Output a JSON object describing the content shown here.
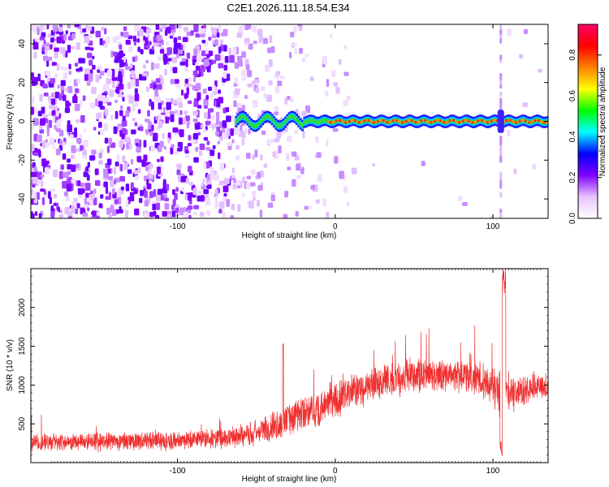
{
  "title": "C2E1.2026.111.18.54.E34",
  "chart_data": [
    {
      "type": "heatmap",
      "xlabel": "Height of straight line (km)",
      "ylabel": "Frequency (Hz)",
      "xlim": [
        -193,
        135
      ],
      "ylim": [
        -50,
        50
      ],
      "x_ticks": [
        -100,
        0,
        100
      ],
      "y_ticks": [
        -40,
        -20,
        0,
        20,
        40
      ],
      "colorbar": {
        "label": "Normalized spectral amplitude",
        "range": [
          0,
          0.95
        ],
        "ticks": [
          "0.0",
          "0.2",
          "0.4",
          "0.6",
          "0.8"
        ],
        "colors": [
          "#ffffff",
          "#e9c2ff",
          "#8000ff",
          "#0000ff",
          "#00ffff",
          "#00ff00",
          "#ffff00",
          "#ff8000",
          "#ff0000",
          "#ff0066"
        ]
      },
      "features": {
        "noise_region_x": [
          -193,
          -65
        ],
        "signal_line_x": [
          -63,
          135
        ],
        "signal_frequency_hz": 0,
        "spike_x": 105
      },
      "grid": false
    },
    {
      "type": "line",
      "xlabel": "Height of straight line (km)",
      "ylabel": "SNR (10 * v/v)",
      "xlim": [
        -193,
        135
      ],
      "ylim": [
        0,
        2500
      ],
      "x_ticks": [
        -100,
        0,
        100
      ],
      "y_ticks": [
        500,
        1000,
        1500,
        2000
      ],
      "color": "#f03030",
      "envelope": [
        {
          "x": -193,
          "mean": 260,
          "spread": 160
        },
        {
          "x": -150,
          "mean": 270,
          "spread": 160
        },
        {
          "x": -100,
          "mean": 290,
          "spread": 170
        },
        {
          "x": -70,
          "mean": 320,
          "spread": 180
        },
        {
          "x": -50,
          "mean": 390,
          "spread": 230
        },
        {
          "x": -30,
          "mean": 560,
          "spread": 320
        },
        {
          "x": -10,
          "mean": 700,
          "spread": 330
        },
        {
          "x": 10,
          "mean": 920,
          "spread": 330
        },
        {
          "x": 30,
          "mean": 1050,
          "spread": 320
        },
        {
          "x": 50,
          "mean": 1120,
          "spread": 310
        },
        {
          "x": 70,
          "mean": 1150,
          "spread": 300
        },
        {
          "x": 90,
          "mean": 1080,
          "spread": 290
        },
        {
          "x": 105,
          "mean": 900,
          "spread": 400
        },
        {
          "x": 110,
          "mean": 850,
          "spread": 300
        },
        {
          "x": 125,
          "mean": 980,
          "spread": 250
        },
        {
          "x": 135,
          "mean": 1010,
          "spread": 240
        }
      ],
      "peak": {
        "x": 107,
        "y": 2500
      },
      "grid": false
    }
  ]
}
